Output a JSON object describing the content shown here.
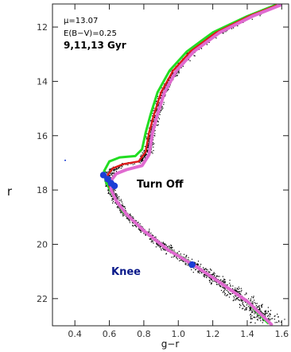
{
  "chart_data": {
    "type": "scatter",
    "title": "",
    "xlabel": "g−r",
    "ylabel": "r",
    "xlim": [
      0.27,
      1.64
    ],
    "ylim": [
      23.0,
      11.15
    ],
    "y_inverted": true,
    "grid": false,
    "x_ticks": [
      0.4,
      0.6,
      0.8,
      1.0,
      1.2,
      1.4,
      1.6
    ],
    "x_tick_labels": [
      "0.4",
      "0.6",
      "0.8",
      "1.0",
      "1.2",
      "1.4",
      "1.6"
    ],
    "y_ticks": [
      12,
      14,
      16,
      18,
      20,
      22
    ],
    "y_tick_labels": [
      "12",
      "14",
      "16",
      "18",
      "20",
      "22"
    ],
    "parameters": {
      "mu_label": "μ=13.07",
      "reddening_label": "E(B−V)=0.25",
      "ages_label": "9,11,13 Gyr"
    },
    "annotations": [
      {
        "text": "Turn Off",
        "color": "#000000"
      },
      {
        "text": "Knee",
        "color": "#0a1a8a"
      }
    ],
    "stars_color": "#000000",
    "marker_color": "#1b3fd6",
    "series": [
      {
        "color": "#22dd22",
        "points": [
          [
            1.56,
            11.2
          ],
          [
            1.4,
            11.6
          ],
          [
            1.2,
            12.2
          ],
          [
            1.05,
            12.9
          ],
          [
            0.95,
            13.6
          ],
          [
            0.88,
            14.4
          ],
          [
            0.84,
            15.2
          ],
          [
            0.81,
            15.9
          ],
          [
            0.79,
            16.5
          ],
          [
            0.75,
            16.75
          ],
          [
            0.66,
            16.8
          ],
          [
            0.6,
            16.95
          ],
          [
            0.57,
            17.3
          ],
          [
            0.58,
            17.7
          ],
          [
            0.62,
            18.2
          ],
          [
            0.68,
            18.8
          ],
          [
            0.78,
            19.4
          ],
          [
            0.92,
            20.1
          ],
          [
            1.08,
            20.7
          ],
          [
            1.22,
            21.3
          ],
          [
            1.38,
            22.0
          ],
          [
            1.52,
            22.9
          ]
        ]
      },
      {
        "color": "#dd1a1a",
        "points": [
          [
            1.57,
            11.2
          ],
          [
            1.41,
            11.6
          ],
          [
            1.22,
            12.2
          ],
          [
            1.07,
            12.9
          ],
          [
            0.97,
            13.6
          ],
          [
            0.9,
            14.4
          ],
          [
            0.86,
            15.2
          ],
          [
            0.83,
            15.9
          ],
          [
            0.81,
            16.6
          ],
          [
            0.77,
            16.95
          ],
          [
            0.68,
            17.05
          ],
          [
            0.62,
            17.2
          ],
          [
            0.59,
            17.45
          ],
          [
            0.6,
            17.85
          ],
          [
            0.63,
            18.3
          ],
          [
            0.69,
            18.85
          ],
          [
            0.79,
            19.45
          ],
          [
            0.93,
            20.15
          ],
          [
            1.09,
            20.75
          ],
          [
            1.23,
            21.35
          ],
          [
            1.39,
            22.05
          ],
          [
            1.53,
            22.9
          ]
        ]
      },
      {
        "color": "#e06ad0",
        "points": [
          [
            1.59,
            11.2
          ],
          [
            1.43,
            11.6
          ],
          [
            1.24,
            12.2
          ],
          [
            1.09,
            12.9
          ],
          [
            0.99,
            13.6
          ],
          [
            0.92,
            14.4
          ],
          [
            0.88,
            15.2
          ],
          [
            0.85,
            15.9
          ],
          [
            0.83,
            16.7
          ],
          [
            0.79,
            17.1
          ],
          [
            0.7,
            17.25
          ],
          [
            0.64,
            17.4
          ],
          [
            0.61,
            17.65
          ],
          [
            0.61,
            18.0
          ],
          [
            0.64,
            18.4
          ],
          [
            0.7,
            18.9
          ],
          [
            0.8,
            19.5
          ],
          [
            0.94,
            20.2
          ],
          [
            1.1,
            20.8
          ],
          [
            1.24,
            21.4
          ],
          [
            1.4,
            22.1
          ],
          [
            1.54,
            22.95
          ]
        ]
      }
    ],
    "markers": [
      {
        "x": 0.565,
        "y": 17.45
      },
      {
        "x": 0.59,
        "y": 17.6
      },
      {
        "x": 0.61,
        "y": 17.75
      },
      {
        "x": 0.63,
        "y": 17.85
      },
      {
        "x": 1.08,
        "y": 20.75
      }
    ]
  }
}
